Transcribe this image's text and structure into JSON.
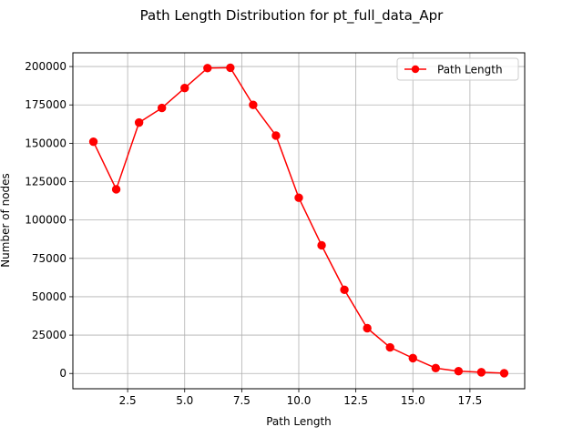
{
  "chart_data": {
    "type": "line",
    "title": "Path Length Distribution for pt_full_data_Apr",
    "xlabel": "Path Length",
    "ylabel": "Number of nodes",
    "xlim": [
      0.1,
      19.9
    ],
    "ylim": [
      -9950,
      208950
    ],
    "xticks": [
      2.5,
      5.0,
      7.5,
      10.0,
      12.5,
      15.0,
      17.5
    ],
    "xtick_labels": [
      "2.5",
      "5.0",
      "7.5",
      "10.0",
      "12.5",
      "15.0",
      "17.5"
    ],
    "yticks": [
      0,
      25000,
      50000,
      75000,
      100000,
      125000,
      150000,
      175000,
      200000
    ],
    "ytick_labels": [
      "0",
      "25000",
      "50000",
      "75000",
      "100000",
      "125000",
      "150000",
      "175000",
      "200000"
    ],
    "grid": true,
    "legend": "upper right",
    "series": [
      {
        "name": "Path Length",
        "color": "#ff0000",
        "marker": "circle",
        "x": [
          1,
          2,
          3,
          4,
          5,
          6,
          7,
          8,
          9,
          10,
          11,
          12,
          13,
          14,
          15,
          16,
          17,
          18,
          19
        ],
        "values": [
          151000,
          120000,
          163500,
          173000,
          186000,
          199000,
          199200,
          175000,
          155000,
          114500,
          83500,
          54500,
          29500,
          17000,
          10000,
          3500,
          1500,
          800,
          200
        ]
      }
    ]
  }
}
